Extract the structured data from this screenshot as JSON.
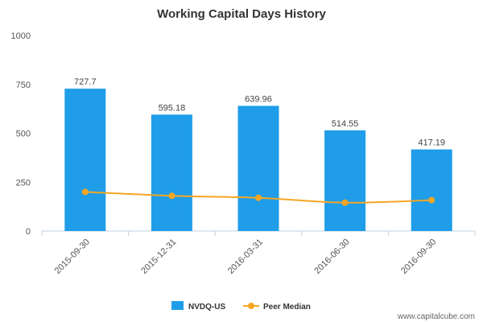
{
  "chart_data": {
    "type": "bar",
    "title": "Working Capital Days History",
    "categories": [
      "2015-09-30",
      "2015-12-31",
      "2016-03-31",
      "2016-06-30",
      "2016-09-30"
    ],
    "series": [
      {
        "name": "NVDQ-US",
        "type": "bar",
        "values": [
          727.7,
          595.18,
          639.96,
          514.55,
          417.19
        ],
        "labels": [
          "727.7",
          "595.18",
          "639.96",
          "514.55",
          "417.19"
        ],
        "color": "#1f9de8"
      },
      {
        "name": "Peer Median",
        "type": "line",
        "values": [
          200,
          180,
          170,
          145,
          158
        ],
        "color": "#f5a623"
      }
    ],
    "ylim": [
      0,
      1000
    ],
    "yticks": [
      "0",
      "250",
      "500",
      "750",
      "1000"
    ],
    "ytick_values": [
      0,
      250,
      500,
      750,
      1000
    ],
    "grid": false,
    "legend_position": "bottom-center"
  },
  "watermark": "www.capitalcube.com"
}
